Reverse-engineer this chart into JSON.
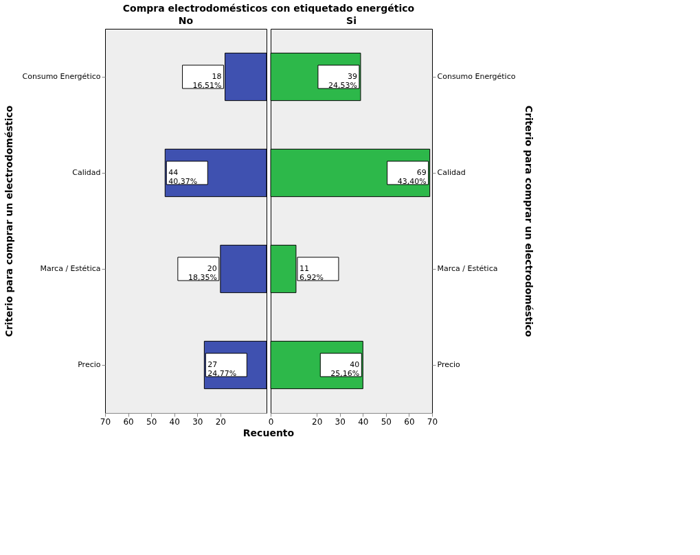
{
  "chart_data": [
    {
      "type": "bar",
      "orientation": "horizontal",
      "title": "Compra electrodomésticos con etiquetado energético",
      "subtitle": "No",
      "xlabel": "Recuento",
      "ylabel": "Criterio para comprar un electrodoméstico",
      "categories": [
        "Consumo Energético",
        "Calidad",
        "Marca / Estética",
        "Precio"
      ],
      "values": [
        18,
        44,
        20,
        27
      ],
      "color": "#3f51b0",
      "xlim": [
        70,
        0
      ],
      "xticks": [
        70,
        60,
        50,
        40,
        30,
        20
      ],
      "value_labels": [
        "18\n16,51%",
        "44\n40,37%",
        "20\n18,35%",
        "27\n24,77%"
      ],
      "grid": false
    },
    {
      "type": "bar",
      "orientation": "horizontal",
      "subtitle": "Si",
      "ylabel": "Criterio para comprar un electrodoméstico",
      "categories": [
        "Consumo Energético",
        "Calidad",
        "Marca / Estética",
        "Precio"
      ],
      "values": [
        39,
        69,
        11,
        40
      ],
      "color": "#2db84a",
      "xlim": [
        0,
        70
      ],
      "xticks": [
        0,
        20,
        30,
        40,
        50,
        60,
        70
      ],
      "value_labels": [
        "39\n24,53%",
        "69\n43,40%",
        "11\n6,92%",
        "40\n25,16%"
      ],
      "grid": false
    }
  ]
}
